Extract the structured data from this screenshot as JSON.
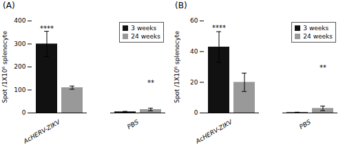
{
  "chart_data": [
    {
      "type": "bar",
      "title": "(A)",
      "categories": [
        "AcHERV-ZIKV",
        "PBS"
      ],
      "series": [
        {
          "name": "3 weeks",
          "color": "#111111",
          "values": [
            300,
            5
          ],
          "errors": [
            55,
            2
          ]
        },
        {
          "name": "24 weeks",
          "color": "#999999",
          "values": [
            110,
            15
          ],
          "errors": [
            7,
            6
          ]
        }
      ],
      "ylabel": "Spot /1X10⁶ splenocyte",
      "ylim": [
        0,
        400
      ],
      "yticks": [
        0,
        100,
        200,
        300,
        400
      ],
      "legend": "upper right",
      "annotations": [
        {
          "text": "****",
          "category": "AcHERV-ZIKV",
          "series": "3 weeks",
          "y": 358
        },
        {
          "text": "**",
          "category": "PBS",
          "series": "24 weeks",
          "y": 120
        }
      ]
    },
    {
      "type": "bar",
      "title": "(B)",
      "categories": [
        "AcHERV-ZIKV",
        "PBS"
      ],
      "series": [
        {
          "name": "3 weeks",
          "color": "#111111",
          "values": [
            43,
            0.3
          ],
          "errors": [
            10,
            0.2
          ]
        },
        {
          "name": "24 weeks",
          "color": "#999999",
          "values": [
            20,
            3
          ],
          "errors": [
            6,
            1.5
          ]
        }
      ],
      "ylabel": "Spot /1X10⁶ splenocyte",
      "ylim": [
        0,
        60
      ],
      "yticks": [
        0,
        20,
        40,
        60
      ],
      "legend": "upper right",
      "annotations": [
        {
          "text": "****",
          "category": "AcHERV-ZIKV",
          "series": "3 weeks",
          "y": 54
        },
        {
          "text": "**",
          "category": "PBS",
          "series": "24 weeks",
          "y": 28
        }
      ]
    }
  ]
}
